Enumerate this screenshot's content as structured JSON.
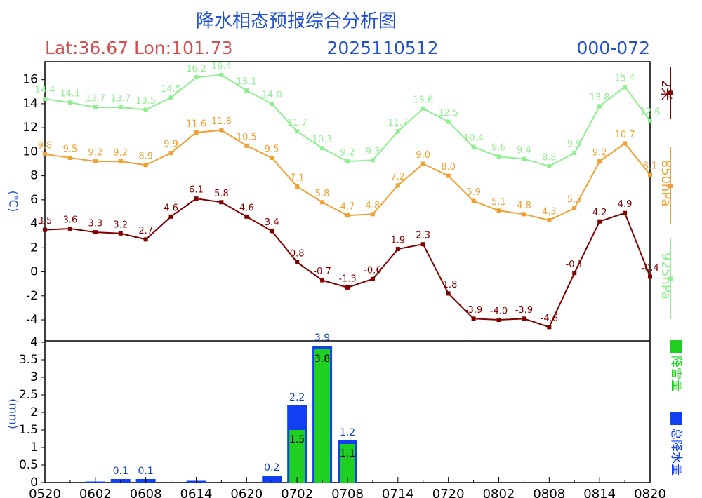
{
  "chart_data": [
    {
      "type": "line",
      "title": "降水相态预报综合分析图",
      "location": "Lat:36.67 Lon:101.73",
      "init_time": "2025110512",
      "forecast_range": "000-072",
      "y_label": "(℃)",
      "ylim": [
        -5.75,
        17.5
      ],
      "yticks": [
        -4,
        -2,
        0,
        2,
        4,
        6,
        8,
        10,
        12,
        14,
        16
      ],
      "series": [
        {
          "name": "2米",
          "color": "#800000",
          "values": [
            3.5,
            3.6,
            3.3,
            3.2,
            2.7,
            4.6,
            6.1,
            5.8,
            4.6,
            3.4,
            0.8,
            -0.7,
            -1.3,
            -0.6,
            1.9,
            2.3,
            -1.8,
            -3.9,
            -4.0,
            -3.9,
            -4.6,
            -0.1,
            4.2,
            4.9,
            -0.4
          ],
          "value_labels": [
            "3.5",
            "3.6",
            "3.3",
            "3.2",
            "2.7",
            "4.6",
            "6.1",
            "5.8",
            "4.6",
            "3.4",
            "0.8",
            "-0.7",
            "-1.3",
            "-0.6",
            "1.9",
            "2.3",
            "-1.8",
            "-3.9",
            "-4.0",
            "-3.9",
            "-4.6",
            "-0.1",
            "4.2",
            "4.9",
            "-0.4"
          ]
        },
        {
          "name": "850hPa",
          "color": "#f0a030",
          "values": [
            9.8,
            9.5,
            9.2,
            9.2,
            8.9,
            9.9,
            11.6,
            11.8,
            10.5,
            9.5,
            7.1,
            5.8,
            4.7,
            4.8,
            7.2,
            9.0,
            8.0,
            5.9,
            5.1,
            4.8,
            4.3,
            5.3,
            9.2,
            10.7,
            8.1
          ],
          "value_labels": [
            "9.8",
            "9.5",
            "9.2",
            "9.2",
            "8.9",
            "9.9",
            "11.6",
            "11.8",
            "10.5",
            "9.5",
            "7.1",
            "5.8",
            "4.7",
            "4.8",
            "7.2",
            "9.0",
            "8.0",
            "5.9",
            "5.1",
            "4.8",
            "4.3",
            "5.3",
            "9.2",
            "10.7",
            "8.1"
          ]
        },
        {
          "name": "925hPa",
          "color": "#90ee90",
          "values": [
            14.4,
            14.1,
            13.7,
            13.7,
            13.5,
            14.5,
            16.2,
            16.4,
            15.1,
            14.0,
            11.7,
            10.3,
            9.2,
            9.3,
            11.7,
            13.6,
            12.5,
            10.4,
            9.6,
            9.4,
            8.8,
            9.9,
            13.8,
            15.4,
            12.6
          ],
          "value_labels": [
            "14.4",
            "14.1",
            "13.7",
            "13.7",
            "13.5",
            "14.5",
            "16.2",
            "16.4",
            "15.1",
            "14.0",
            "11.7",
            "10.3",
            "9.2",
            "9.3",
            "11.7",
            "13.6",
            "12.5",
            "10.4",
            "9.6",
            "9.4",
            "8.8",
            "9.9",
            "13.8",
            "15.4",
            "12.6"
          ]
        }
      ]
    },
    {
      "type": "bar",
      "y_label": "(mm)",
      "categories": [
        "0520",
        null,
        "0602",
        null,
        "0608",
        null,
        "0614",
        null,
        "0620",
        null,
        "0702",
        null,
        "0708",
        null,
        "0714",
        null,
        "0720",
        null,
        "0802",
        null,
        "0808",
        null,
        "0814",
        null,
        "0820"
      ],
      "ylim": [
        0,
        4
      ],
      "yticks": [
        0,
        0.5,
        1,
        1.5,
        2,
        2.5,
        3,
        3.5,
        4
      ],
      "series": [
        {
          "name": "总降水量",
          "color": "#1040f0",
          "values": [
            0,
            0,
            0.03,
            0.1,
            0.1,
            0,
            0.05,
            0,
            0,
            0.2,
            2.2,
            3.9,
            1.2,
            0,
            0,
            0,
            0,
            0,
            0,
            0,
            0,
            0,
            0,
            0,
            0
          ],
          "value_labels": [
            null,
            null,
            null,
            "0.1",
            "0.1",
            null,
            null,
            null,
            null,
            "0.2",
            "2.2",
            "3.9",
            "1.2",
            null,
            null,
            null,
            null,
            null,
            null,
            null,
            null,
            null,
            null,
            null,
            null
          ]
        },
        {
          "name": "降雪量",
          "color": "#20d020",
          "values": [
            0,
            0,
            0,
            0,
            0,
            0,
            0,
            0,
            0,
            0,
            1.5,
            3.8,
            1.1,
            0,
            0,
            0,
            0,
            0,
            0,
            0,
            0,
            0,
            0,
            0,
            0
          ],
          "value_labels": [
            null,
            null,
            null,
            null,
            null,
            null,
            null,
            null,
            null,
            null,
            "1.5",
            "3.8",
            "1.1",
            null,
            null,
            null,
            null,
            null,
            null,
            null,
            null,
            null,
            null,
            null,
            null
          ]
        }
      ]
    }
  ]
}
